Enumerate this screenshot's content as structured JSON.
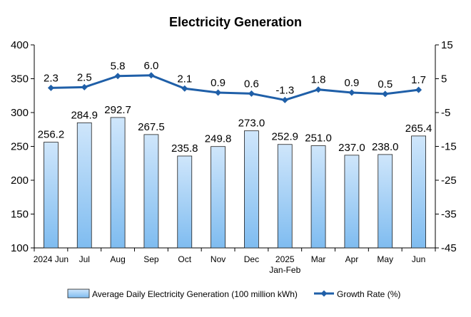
{
  "chart_data": {
    "type": "bar+line",
    "title": "Electricity Generation",
    "categories": [
      "2024 Jun",
      "Jul",
      "Aug",
      "Sep",
      "Oct",
      "Nov",
      "Dec",
      "2025\nJan-Feb",
      "Mar",
      "Apr",
      "May",
      "Jun"
    ],
    "series": [
      {
        "name": "Average Daily Electricity Generation (100 million kWh)",
        "type": "bar",
        "axis": "left",
        "values": [
          256.2,
          284.9,
          292.7,
          267.5,
          235.8,
          249.8,
          273.0,
          252.9,
          251.0,
          237.0,
          238.0,
          265.4
        ],
        "labels": [
          "256.2",
          "284.9",
          "292.7",
          "267.5",
          "235.8",
          "249.8",
          "273.0",
          "252.9",
          "251.0",
          "237.0",
          "238.0",
          "265.4"
        ]
      },
      {
        "name": "Growth Rate (%)",
        "type": "line",
        "axis": "right",
        "values": [
          2.3,
          2.5,
          5.8,
          6.0,
          2.1,
          0.9,
          0.6,
          -1.3,
          1.8,
          0.9,
          0.5,
          1.7
        ],
        "labels": [
          "2.3",
          "2.5",
          "5.8",
          "6.0",
          "2.1",
          "0.9",
          "0.6",
          "-1.3",
          "1.8",
          "0.9",
          "0.5",
          "1.7"
        ]
      }
    ],
    "y_left": {
      "min": 100,
      "max": 400,
      "ticks": [
        100,
        150,
        200,
        250,
        300,
        350,
        400
      ]
    },
    "y_right": {
      "min": -45,
      "max": 15,
      "ticks": [
        -45,
        -35,
        -25,
        -15,
        -5,
        5,
        15
      ]
    },
    "grid": false,
    "legend_position": "bottom",
    "colors": {
      "bar_fill_top": "#cfe6fb",
      "bar_fill_bottom": "#7fbcf0",
      "bar_stroke": "#1f1f1f",
      "line": "#1f5fa8",
      "axis": "#000000",
      "text": "#000000"
    }
  }
}
